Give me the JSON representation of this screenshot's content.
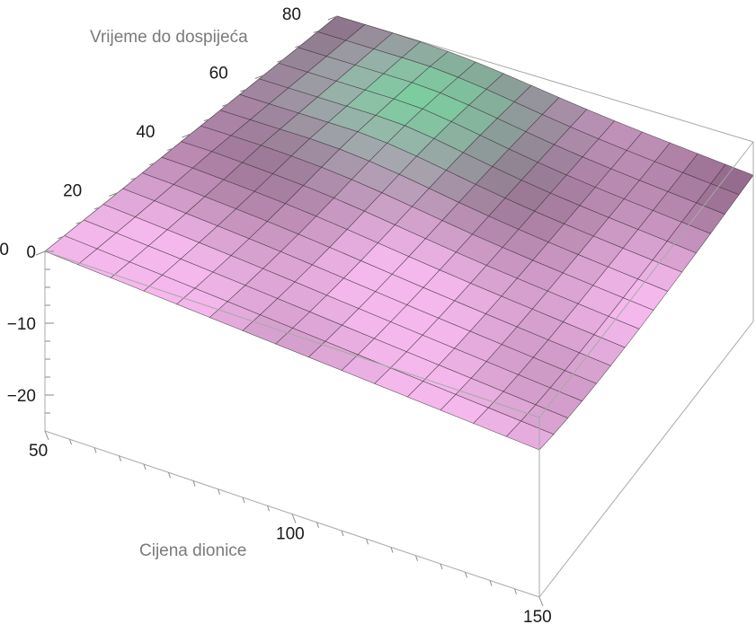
{
  "chart_data": {
    "type": "surface3d",
    "xlabel": "Cijena dionice",
    "ylabel": "Vrijeme do dospijeća",
    "zlabel": "",
    "x_range": [
      50,
      150
    ],
    "y_range": [
      0,
      80
    ],
    "z_range": [
      -25,
      0
    ],
    "x_ticks": [
      {
        "value": 50,
        "label": "50"
      },
      {
        "value": 100,
        "label": "100"
      },
      {
        "value": 150,
        "label": "150"
      }
    ],
    "y_ticks": [
      {
        "value": 0,
        "label": "0"
      },
      {
        "value": 20,
        "label": "20"
      },
      {
        "value": 40,
        "label": "40"
      },
      {
        "value": 60,
        "label": "60"
      },
      {
        "value": 80,
        "label": "80"
      }
    ],
    "z_ticks": [
      {
        "value": 0,
        "label": "0"
      },
      {
        "value": -10,
        "label": "−10"
      },
      {
        "value": -20,
        "label": "−20"
      }
    ],
    "grid_resolution": [
      15,
      15
    ],
    "colors": {
      "low": "#f4b8ec",
      "mid": "#5a3d52",
      "high": "#6fd69a",
      "mesh": "#3a2a36",
      "box": "#a8a8a8"
    },
    "surface_description": "Option theta-like surface: near 0 at expiry edge and low prices, deepest negative (about -25) at high price and long time, green peak near price 50-100 at mid-to-long maturity."
  }
}
